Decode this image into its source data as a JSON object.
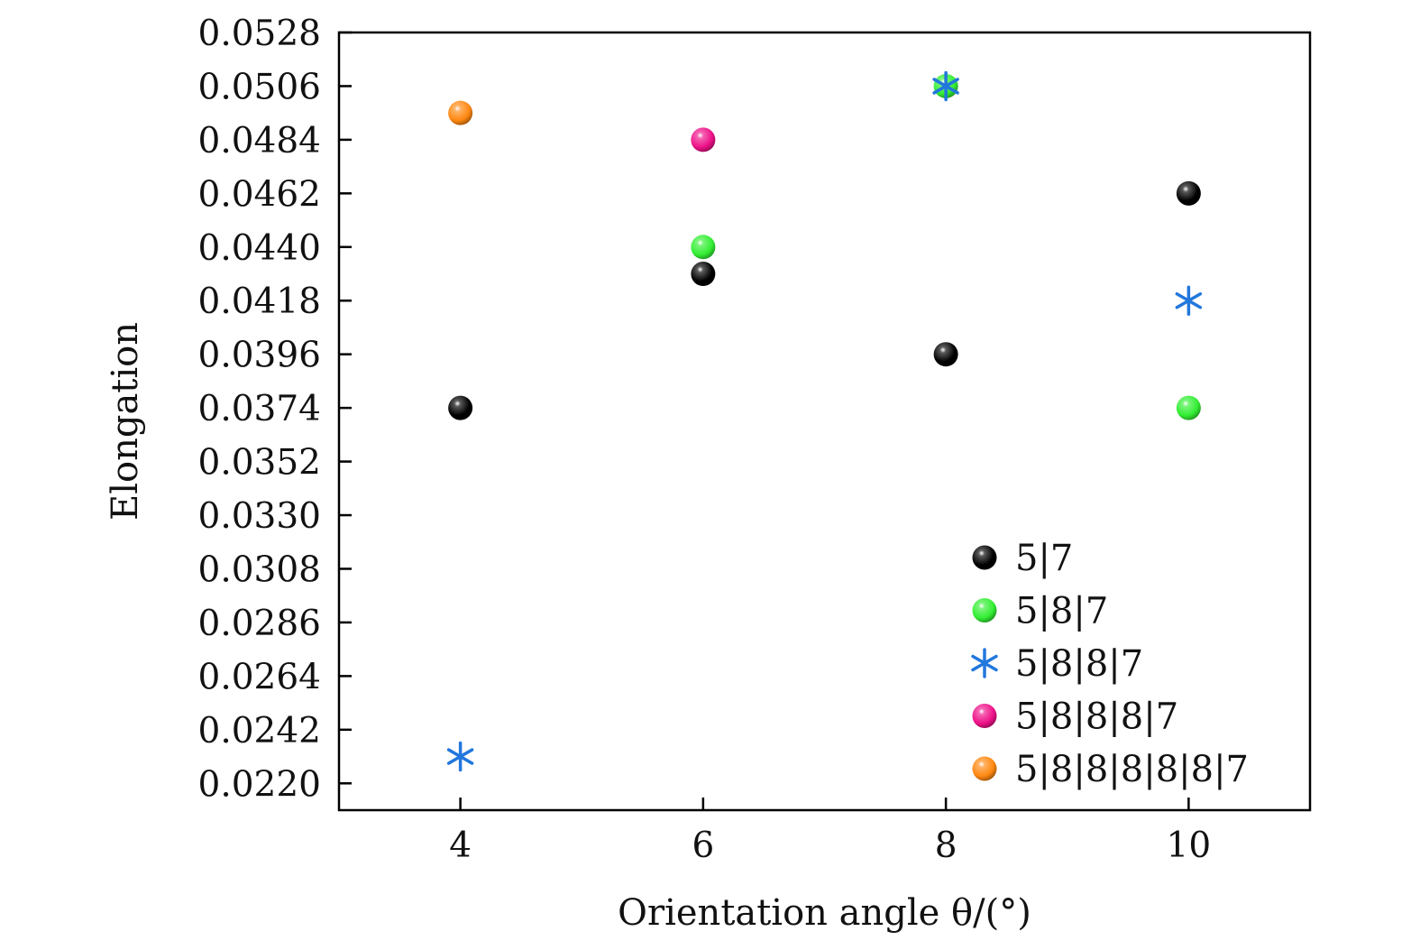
{
  "chart_data": {
    "type": "scatter",
    "title": "",
    "xlabel": "Orientation angle θ/(°)",
    "ylabel": "Elongation",
    "xlim": [
      3,
      11
    ],
    "ylim": [
      0.0209,
      0.0528
    ],
    "x_ticks": [
      "4",
      "6",
      "8",
      "10"
    ],
    "x_tick_values": [
      4,
      6,
      8,
      10
    ],
    "y_ticks": [
      "0.0528",
      "0.0506",
      "0.0484",
      "0.0462",
      "0.0440",
      "0.0418",
      "0.0396",
      "0.0374",
      "0.0352",
      "0.0330",
      "0.0308",
      "0.0286",
      "0.0264",
      "0.0242",
      "0.0220"
    ],
    "y_tick_values": [
      0.0528,
      0.0506,
      0.0484,
      0.0462,
      0.044,
      0.0418,
      0.0396,
      0.0374,
      0.0352,
      0.033,
      0.0308,
      0.0286,
      0.0264,
      0.0242,
      0.022
    ],
    "grid": false,
    "legend_position": "bottom-right",
    "series": [
      {
        "name": "5|7",
        "marker": "sphere",
        "color": "#000000",
        "x": [
          4,
          6,
          8,
          10
        ],
        "y": [
          0.0374,
          0.0429,
          0.0396,
          0.0462
        ]
      },
      {
        "name": "5|8|7",
        "marker": "sphere",
        "color": "#33ee33",
        "x": [
          6,
          8,
          10
        ],
        "y": [
          0.044,
          0.0506,
          0.0374
        ]
      },
      {
        "name": "5|8|8|7",
        "marker": "asterisk",
        "color": "#2277dd",
        "x": [
          4,
          8,
          10
        ],
        "y": [
          0.0231,
          0.0506,
          0.0418
        ]
      },
      {
        "name": "5|8|8|8|7",
        "marker": "sphere",
        "color": "#ee1188",
        "x": [
          6
        ],
        "y": [
          0.0484
        ]
      },
      {
        "name": "5|8|8|8|8|8|7",
        "marker": "sphere",
        "color": "#ff8811",
        "x": [
          4
        ],
        "y": [
          0.0495
        ]
      }
    ]
  }
}
